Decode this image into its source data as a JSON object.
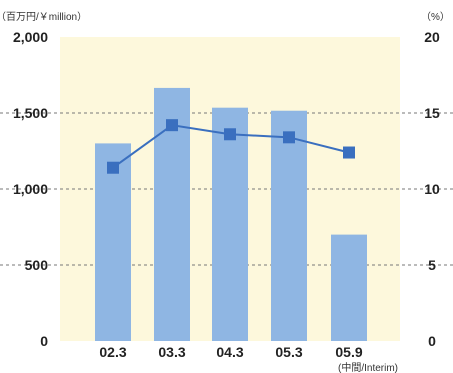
{
  "chart_data": {
    "type": "bar",
    "title": "",
    "categories": [
      "02.3",
      "03.3",
      "04.3",
      "05.3",
      "05.9"
    ],
    "category_note": "(中間/Interim)",
    "series": [
      {
        "type": "bar",
        "axis": "left",
        "values": [
          1300,
          1665,
          1535,
          1515,
          700
        ],
        "color": "#8fb6e3"
      },
      {
        "type": "line",
        "axis": "right",
        "values": [
          11.4,
          14.2,
          13.6,
          13.4,
          12.4
        ],
        "color": "#3a6fbf"
      }
    ],
    "left_axis": {
      "unit": "（百万円/￥million）",
      "ticks": [
        0,
        500,
        1000,
        1500,
        2000
      ],
      "tick_labels": [
        "0",
        "500",
        "1,000",
        "1,500",
        "2,000"
      ],
      "ylim": [
        0,
        2000
      ]
    },
    "right_axis": {
      "unit": "（%）",
      "ticks": [
        0,
        5,
        10,
        15,
        20
      ],
      "tick_labels": [
        "0",
        "5",
        "10",
        "15",
        "20"
      ],
      "ylim": [
        0,
        20
      ]
    },
    "grid": "dashed",
    "background_color": "#fdf8dc"
  }
}
